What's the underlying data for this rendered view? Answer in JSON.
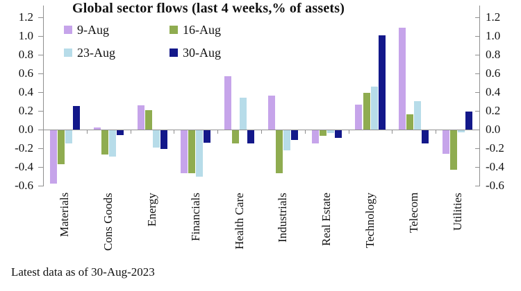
{
  "footnote": "Latest data as of 30-Aug-2023",
  "chart_data": {
    "type": "bar",
    "title": "Global sector flows (last 4 weeks,% of assets)",
    "xlabel": "",
    "ylabel": "",
    "ylim": [
      -0.6,
      1.2
    ],
    "yticks": [
      1.2,
      1.0,
      0.8,
      0.6,
      0.4,
      0.2,
      0.0,
      -0.2,
      -0.4,
      -0.6
    ],
    "grid": false,
    "legend_position": "top-left",
    "axis_color": "#8f8f8f",
    "categories": [
      "Materials",
      "Cons Goods",
      "Energy",
      "Financials",
      "Health Care",
      "Industrials",
      "Real Estate",
      "Technology",
      "Telecom",
      "Utilities"
    ],
    "series": [
      {
        "name": "9-Aug",
        "color": "#c6a4ea",
        "values": [
          -0.58,
          0.02,
          0.26,
          -0.47,
          0.57,
          0.36,
          -0.15,
          0.27,
          1.09,
          -0.26
        ]
      },
      {
        "name": "16-Aug",
        "color": "#8fac50",
        "values": [
          -0.37,
          -0.27,
          0.21,
          -0.47,
          -0.15,
          -0.47,
          -0.07,
          0.39,
          0.16,
          -0.43
        ]
      },
      {
        "name": "23-Aug",
        "color": "#b7dce9",
        "values": [
          -0.15,
          -0.29,
          -0.19,
          -0.5,
          0.34,
          -0.22,
          -0.04,
          0.46,
          0.3,
          -0.03
        ]
      },
      {
        "name": "30-Aug",
        "color": "#13188a",
        "values": [
          0.25,
          -0.06,
          -0.21,
          -0.14,
          -0.15,
          -0.11,
          -0.09,
          1.01,
          -0.15,
          0.19
        ]
      }
    ]
  }
}
